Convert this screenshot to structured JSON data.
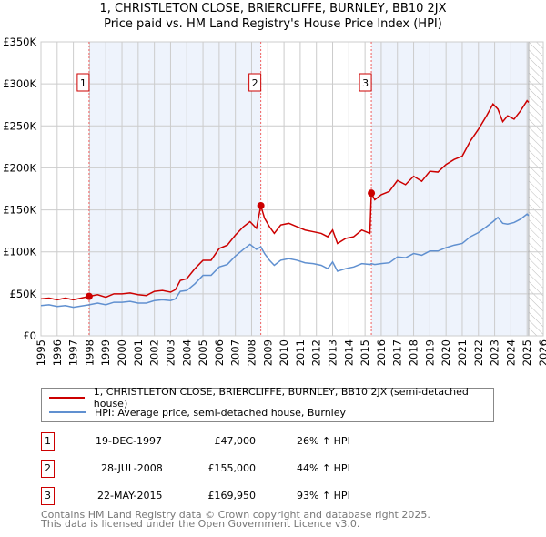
{
  "chart_data": {
    "type": "line",
    "title": "1, CHRISTLETON CLOSE, BRIERCLIFFE, BURNLEY, BB10 2JX",
    "subtitle": "Price paid vs. HM Land Registry's House Price Index (HPI)",
    "xlim": [
      1995,
      2026
    ],
    "ylim": [
      0,
      350000
    ],
    "x_ticks": [
      "1995",
      "1996",
      "1997",
      "1998",
      "1999",
      "2000",
      "2001",
      "2002",
      "2003",
      "2004",
      "2005",
      "2006",
      "2007",
      "2008",
      "2009",
      "2010",
      "2011",
      "2012",
      "2013",
      "2014",
      "2015",
      "2016",
      "2017",
      "2018",
      "2019",
      "2020",
      "2021",
      "2022",
      "2023",
      "2024",
      "2025",
      "2026"
    ],
    "y_ticks": [
      {
        "v": 0,
        "label": "£0"
      },
      {
        "v": 50000,
        "label": "£50K"
      },
      {
        "v": 100000,
        "label": "£100K"
      },
      {
        "v": 150000,
        "label": "£150K"
      },
      {
        "v": 200000,
        "label": "£200K"
      },
      {
        "v": 250000,
        "label": "£250K"
      },
      {
        "v": 300000,
        "label": "£300K"
      },
      {
        "v": 350000,
        "label": "£350K"
      }
    ],
    "grid": true,
    "forecast_start": 2025.1,
    "series": [
      {
        "name": "1, CHRISTLETON CLOSE, BRIERCLIFFE, BURNLEY, BB10 2JX (semi-detached house)",
        "color": "#cc0000",
        "x": [
          1995,
          1995.5,
          1996,
          1996.5,
          1997,
          1997.97,
          1998.5,
          1999,
          1999.5,
          2000,
          2000.5,
          2001,
          2001.5,
          2002,
          2002.5,
          2003,
          2003.3,
          2003.6,
          2004,
          2004.5,
          2005,
          2005.5,
          2006,
          2006.5,
          2007,
          2007.5,
          2007.9,
          2008.3,
          2008.57,
          2008.8,
          2009.1,
          2009.4,
          2009.8,
          2010.3,
          2010.8,
          2011.3,
          2011.8,
          2012.3,
          2012.7,
          2013,
          2013.3,
          2013.8,
          2014.3,
          2014.8,
          2015.3,
          2015.39,
          2015.6,
          2016,
          2016.5,
          2017,
          2017.5,
          2018,
          2018.5,
          2019,
          2019.5,
          2020,
          2020.5,
          2021,
          2021.5,
          2022,
          2022.5,
          2022.9,
          2023.2,
          2023.5,
          2023.8,
          2024.2,
          2024.6,
          2025,
          2025.1
        ],
        "y": [
          44000,
          45000,
          43000,
          45000,
          43000,
          47000,
          49000,
          46000,
          50000,
          50000,
          51000,
          49000,
          48000,
          53000,
          54000,
          52000,
          55000,
          66000,
          68000,
          80000,
          90000,
          90000,
          104000,
          108000,
          120000,
          130000,
          136000,
          128000,
          155000,
          140000,
          130000,
          122000,
          132000,
          134000,
          130000,
          126000,
          124000,
          122000,
          118000,
          126000,
          110000,
          116000,
          118000,
          126000,
          122000,
          169950,
          162000,
          168000,
          172000,
          185000,
          180000,
          190000,
          184000,
          196000,
          195000,
          204000,
          210000,
          214000,
          232000,
          246000,
          262000,
          276000,
          270000,
          255000,
          262000,
          258000,
          268000,
          280000,
          278000
        ]
      },
      {
        "name": "HPI: Average price, semi-detached house, Burnley",
        "color": "#6090d0",
        "x": [
          1995,
          1995.5,
          1996,
          1996.5,
          1997,
          1997.97,
          1998.5,
          1999,
          1999.5,
          2000,
          2000.5,
          2001,
          2001.5,
          2002,
          2002.5,
          2003,
          2003.3,
          2003.6,
          2004,
          2004.5,
          2005,
          2005.5,
          2006,
          2006.5,
          2007,
          2007.5,
          2007.9,
          2008.3,
          2008.57,
          2008.8,
          2009.1,
          2009.4,
          2009.8,
          2010.3,
          2010.8,
          2011.3,
          2011.8,
          2012.3,
          2012.7,
          2013,
          2013.3,
          2013.8,
          2014.3,
          2014.8,
          2015.3,
          2015.39,
          2015.6,
          2016,
          2016.5,
          2017,
          2017.5,
          2018,
          2018.5,
          2019,
          2019.5,
          2020,
          2020.5,
          2021,
          2021.5,
          2022,
          2022.5,
          2022.9,
          2023.2,
          2023.5,
          2023.8,
          2024.2,
          2024.6,
          2025,
          2025.1
        ],
        "y": [
          36000,
          37000,
          35000,
          36000,
          34000,
          37000,
          39000,
          37000,
          40000,
          40000,
          41000,
          39000,
          39000,
          42000,
          43000,
          42000,
          44000,
          53000,
          54000,
          62000,
          72000,
          72000,
          82000,
          85000,
          95000,
          103000,
          109000,
          103000,
          106000,
          98000,
          90000,
          84000,
          90000,
          92000,
          90000,
          87000,
          86000,
          84000,
          80000,
          88000,
          77000,
          80000,
          82000,
          86000,
          85000,
          86000,
          85000,
          86000,
          87000,
          94000,
          93000,
          98000,
          96000,
          101000,
          101000,
          105000,
          108000,
          110000,
          118000,
          123000,
          130000,
          136000,
          141000,
          134000,
          133000,
          135000,
          139000,
          145000,
          143000
        ]
      }
    ],
    "annotations": [
      {
        "label": "1",
        "x": 1997.97,
        "y": 47000
      },
      {
        "label": "2",
        "x": 2008.57,
        "y": 155000
      },
      {
        "label": "3",
        "x": 2015.39,
        "y": 169950
      }
    ]
  },
  "legend": {
    "red": "1, CHRISTLETON CLOSE, BRIERCLIFFE, BURNLEY, BB10 2JX (semi-detached house)",
    "blue": "HPI: Average price, semi-detached house, Burnley"
  },
  "transactions": [
    {
      "n": "1",
      "date": "19-DEC-1997",
      "price": "£47,000",
      "hpi": "26% ↑ HPI"
    },
    {
      "n": "2",
      "date": "28-JUL-2008",
      "price": "£155,000",
      "hpi": "44% ↑ HPI"
    },
    {
      "n": "3",
      "date": "22-MAY-2015",
      "price": "£169,950",
      "hpi": "93% ↑ HPI"
    }
  ],
  "footer": {
    "line1": "Contains HM Land Registry data © Crown copyright and database right 2025.",
    "line2": "This data is licensed under the Open Government Licence v3.0."
  }
}
